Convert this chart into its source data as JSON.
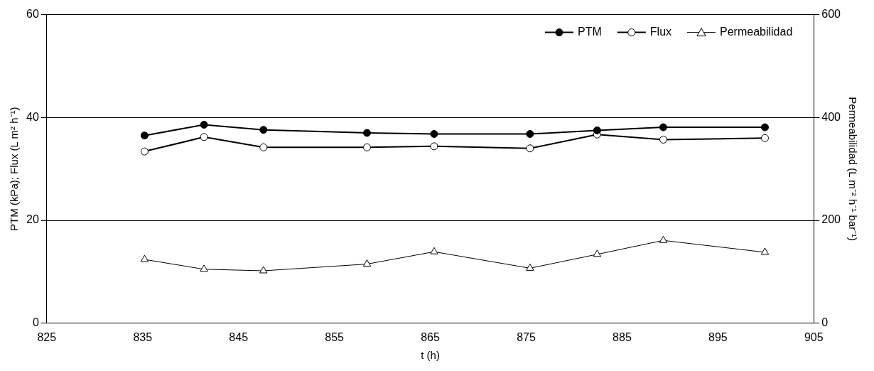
{
  "chart_data": {
    "type": "line",
    "xlabel": "t (h)",
    "ylabel": "PTM (kPa); Flux (L m² h⁻¹)",
    "y2label": "Permeabilidad (L m⁻² h⁻¹ bar⁻¹)",
    "x": [
      835.2,
      841.4,
      847.6,
      858.4,
      865.4,
      875.4,
      882.4,
      889.3,
      899.9
    ],
    "series": [
      {
        "name": "PTM",
        "color": "#000000",
        "marker": "circle",
        "values": [
          36.5,
          38.6,
          37.6,
          37.0,
          36.8,
          36.8,
          37.5,
          38.1,
          38.1
        ]
      },
      {
        "name": "Flux",
        "color": "#000000",
        "marker": "circle",
        "values": [
          33.4,
          36.2,
          34.2,
          34.2,
          34.4,
          34.0,
          36.7,
          35.7,
          36.0
        ]
      },
      {
        "name": "Permeabilidad",
        "color": "#000000",
        "marker": "triangle",
        "axis": "y2",
        "values": [
          124,
          105,
          102,
          115,
          139,
          107,
          134,
          161,
          138
        ]
      }
    ],
    "xlim": [
      825,
      905
    ],
    "xticks": [
      825,
      835,
      845,
      855,
      865,
      875,
      885,
      895,
      905
    ],
    "ylim": [
      0,
      60
    ],
    "yticks": [
      0,
      20,
      40,
      60
    ],
    "y2lim": [
      0,
      600
    ],
    "y2ticks": [
      0,
      200,
      400,
      600
    ],
    "grid": "y",
    "legend": "top right"
  }
}
